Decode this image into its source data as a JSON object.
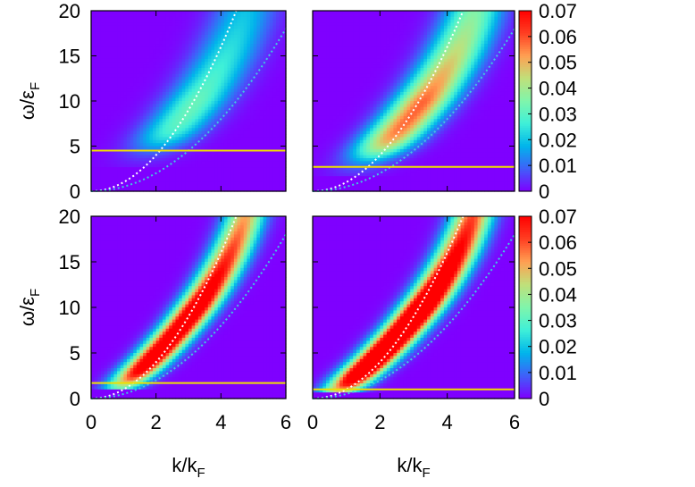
{
  "chart_data": {
    "type": "heatmap",
    "xlabel": {
      "main": "k/k",
      "sub": "F"
    },
    "ylabel": {
      "main": "ω/ε",
      "sub": "F"
    },
    "xlim": [
      0,
      6
    ],
    "ylim": [
      0,
      20
    ],
    "xticks": [
      "0",
      "2",
      "4",
      "6"
    ],
    "yticks": [
      "0",
      "5",
      "10",
      "15",
      "20"
    ],
    "colorbar": {
      "range": [
        0,
        0.07
      ],
      "ticks": [
        "0",
        "0.01",
        "0.02",
        "0.03",
        "0.04",
        "0.05",
        "0.06",
        "0.07"
      ],
      "palette": [
        "#7f00ff",
        "#3f60f9",
        "#00b5eb",
        "#3ff0d8",
        "#80f5ab",
        "#c0e07a",
        "#ff9f52",
        "#ff3e22",
        "#ff0000"
      ]
    },
    "curves": [
      {
        "color": "#ffffff",
        "formula": "omega = k^2"
      },
      {
        "color": "#40c8e0",
        "formula": "omega = k^2 / 2"
      }
    ],
    "panels": [
      {
        "position": "top-left",
        "threshold": 4.5,
        "peak": 0.032,
        "center_shift": 0.0,
        "slope": 0.95,
        "curv": 0.22,
        "width": 0.95,
        "start": 5.0,
        "colorbar": false
      },
      {
        "position": "top-right",
        "threshold": 2.7,
        "peak": 0.058,
        "center_shift": 0.05,
        "slope": 0.95,
        "curv": 0.2,
        "width": 0.85,
        "start": 4.0,
        "colorbar": true
      },
      {
        "position": "bottom-left",
        "threshold": 1.7,
        "peak": 0.085,
        "center_shift": 0.0,
        "slope": 1.05,
        "curv": 0.18,
        "width": 0.6,
        "start": 1.5,
        "colorbar": false
      },
      {
        "position": "bottom-right",
        "threshold": 1.0,
        "peak": 0.1,
        "center_shift": 0.0,
        "slope": 1.0,
        "curv": 0.16,
        "width": 0.6,
        "start": 0.9,
        "colorbar": true
      }
    ],
    "threshold_line_color": "#f0e000"
  }
}
